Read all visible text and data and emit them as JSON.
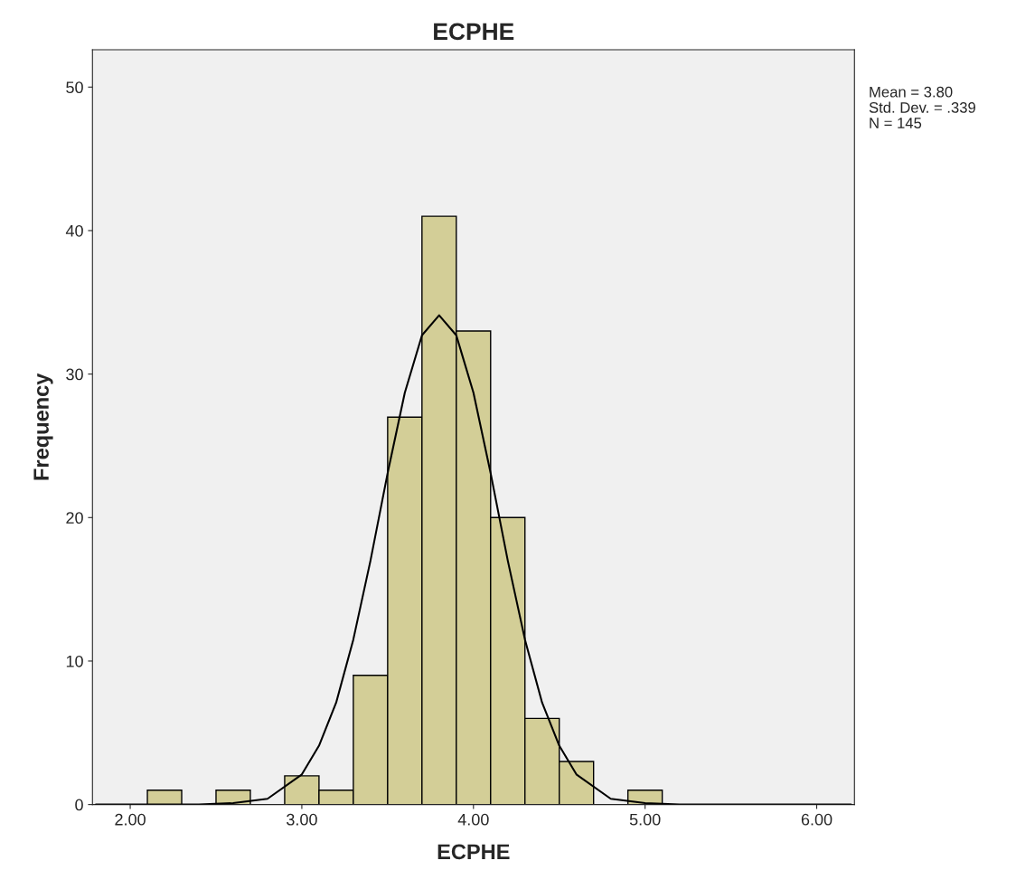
{
  "chart_data": {
    "type": "histogram",
    "title": "ECPHE",
    "xlabel": "ECPHE",
    "ylabel": "Frequency",
    "bins": [
      2.1,
      2.3,
      2.5,
      2.7,
      2.9,
      3.1,
      3.3,
      3.5,
      3.7,
      3.9,
      4.1,
      4.3,
      4.5,
      4.7,
      4.9,
      5.1
    ],
    "series": [
      {
        "color": "#d3ce97",
        "values": [
          1,
          0,
          1,
          0,
          2,
          1,
          9,
          27,
          41,
          33,
          20,
          6,
          3,
          0,
          1
        ]
      },
      {
        "type": "line",
        "color": "#000000",
        "x": [
          1.8,
          2.4,
          2.6,
          2.8,
          3.0,
          3.1,
          3.2,
          3.3,
          3.4,
          3.5,
          3.6,
          3.7,
          3.8,
          3.9,
          4.0,
          4.1,
          4.2,
          4.3,
          4.4,
          4.5,
          4.6,
          4.8,
          5.0,
          5.2,
          6.2
        ],
        "values": [
          0,
          0,
          0.1,
          0.4,
          2.1,
          4.1,
          7.1,
          11.5,
          17.0,
          23.1,
          28.7,
          32.7,
          34.1,
          32.7,
          28.7,
          23.1,
          17.0,
          11.5,
          7.1,
          4.1,
          2.1,
          0.4,
          0.1,
          0,
          0
        ]
      }
    ],
    "xlim": [
      1.78,
      6.22
    ],
    "ylim": [
      0,
      52.6
    ],
    "xticks": [
      {
        "value": 2,
        "label": "2.00"
      },
      {
        "value": 3,
        "label": "3.00"
      },
      {
        "value": 4,
        "label": "4.00"
      },
      {
        "value": 5,
        "label": "5.00"
      },
      {
        "value": 6,
        "label": "6.00"
      }
    ],
    "yticks": [
      0,
      10,
      20,
      30,
      40,
      50
    ],
    "grid": false,
    "legend": false,
    "annotations": [
      "Mean = 3.80",
      "Std. Dev. = .339",
      "N = 145"
    ]
  }
}
